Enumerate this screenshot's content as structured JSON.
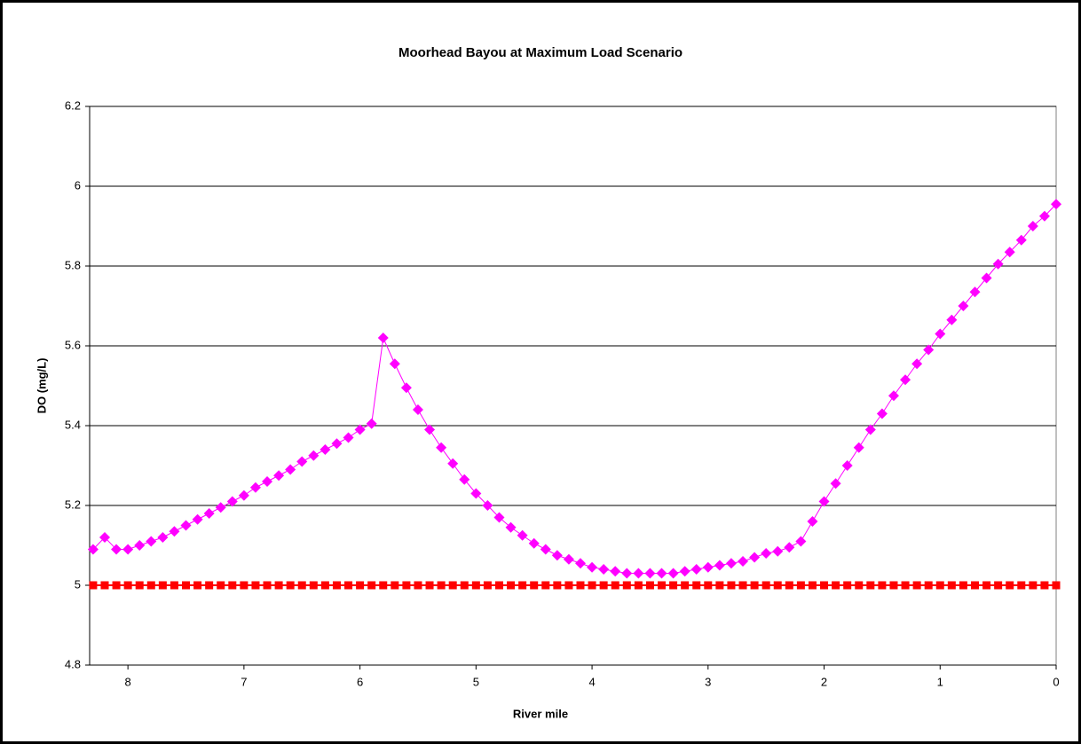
{
  "chart_data": {
    "type": "line",
    "title": "Moorhead Bayou at Maximum Load Scenario",
    "x_label": "River mile",
    "y_label": "DO (mg/L)",
    "x": [
      8.3,
      8.2,
      8.1,
      8.0,
      7.9,
      7.8,
      7.7,
      7.6,
      7.5,
      7.4,
      7.3,
      7.2,
      7.1,
      7.0,
      6.9,
      6.8,
      6.7,
      6.6,
      6.5,
      6.4,
      6.3,
      6.2,
      6.1,
      6.0,
      5.9,
      5.8,
      5.7,
      5.6,
      5.5,
      5.4,
      5.3,
      5.2,
      5.1,
      5.0,
      4.9,
      4.8,
      4.7,
      4.6,
      4.5,
      4.4,
      4.3,
      4.2,
      4.1,
      4.0,
      3.9,
      3.8,
      3.7,
      3.6,
      3.5,
      3.4,
      3.3,
      3.2,
      3.1,
      3.0,
      2.9,
      2.8,
      2.7,
      2.6,
      2.5,
      2.4,
      2.3,
      2.2,
      2.1,
      2.0,
      1.9,
      1.8,
      1.7,
      1.6,
      1.5,
      1.4,
      1.3,
      1.2,
      1.1,
      1.0,
      0.9,
      0.8,
      0.7,
      0.6,
      0.5,
      0.4,
      0.3,
      0.2,
      0.1,
      0.0
    ],
    "series": [
      {
        "color": "#ff00ff",
        "marker": "diamond",
        "values": [
          5.09,
          5.12,
          5.09,
          5.09,
          5.1,
          5.11,
          5.12,
          5.135,
          5.15,
          5.165,
          5.18,
          5.195,
          5.21,
          5.225,
          5.245,
          5.26,
          5.275,
          5.29,
          5.31,
          5.325,
          5.34,
          5.355,
          5.37,
          5.39,
          5.405,
          5.62,
          5.555,
          5.495,
          5.44,
          5.39,
          5.345,
          5.305,
          5.265,
          5.23,
          5.2,
          5.17,
          5.145,
          5.125,
          5.105,
          5.09,
          5.075,
          5.065,
          5.055,
          5.045,
          5.04,
          5.035,
          5.03,
          5.03,
          5.03,
          5.03,
          5.03,
          5.035,
          5.04,
          5.045,
          5.05,
          5.055,
          5.06,
          5.07,
          5.08,
          5.085,
          5.095,
          5.11,
          5.16,
          5.21,
          5.255,
          5.3,
          5.345,
          5.39,
          5.43,
          5.475,
          5.515,
          5.555,
          5.59,
          5.63,
          5.665,
          5.7,
          5.735,
          5.77,
          5.805,
          5.835,
          5.865,
          5.9,
          5.925,
          5.955
        ]
      },
      {
        "color": "#ff0000",
        "marker": "square",
        "values": [
          5,
          5,
          5,
          5,
          5,
          5,
          5,
          5,
          5,
          5,
          5,
          5,
          5,
          5,
          5,
          5,
          5,
          5,
          5,
          5,
          5,
          5,
          5,
          5,
          5,
          5,
          5,
          5,
          5,
          5,
          5,
          5,
          5,
          5,
          5,
          5,
          5,
          5,
          5,
          5,
          5,
          5,
          5,
          5,
          5,
          5,
          5,
          5,
          5,
          5,
          5,
          5,
          5,
          5,
          5,
          5,
          5,
          5,
          5,
          5,
          5,
          5,
          5,
          5,
          5,
          5,
          5,
          5,
          5,
          5,
          5,
          5,
          5,
          5,
          5,
          5,
          5,
          5,
          5,
          5,
          5,
          5,
          5,
          5
        ]
      }
    ],
    "xlim": [
      8.33,
      0
    ],
    "xticks": [
      8,
      7,
      6,
      5,
      4,
      3,
      2,
      1,
      0
    ],
    "ylim": [
      4.8,
      6.2
    ],
    "yticks": [
      4.8,
      5,
      5.2,
      5.4,
      5.6,
      5.8,
      6,
      6.2
    ],
    "grid": true
  }
}
